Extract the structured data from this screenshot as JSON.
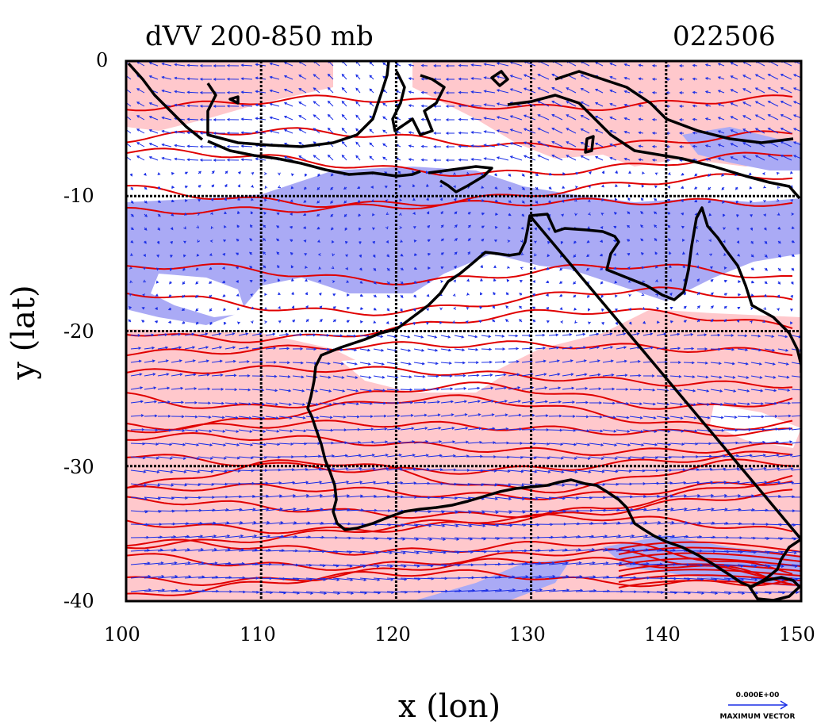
{
  "title": {
    "left": "dVV 200-850 mb",
    "right": "022506"
  },
  "axes": {
    "x_label": "x (lon)",
    "y_label": "y (lat)",
    "x_ticks": [
      "100",
      "110",
      "120",
      "130",
      "140",
      "150"
    ],
    "y_ticks": [
      "0",
      "-10",
      "-20",
      "-30",
      "-40"
    ]
  },
  "legend": {
    "value": "0.000E+00",
    "label": "MAXIMUM VECTOR"
  },
  "map": {
    "lon_range": [
      100,
      150
    ],
    "lat_range": [
      -40,
      0
    ],
    "fill_positive": "#ffc8cc",
    "fill_negative": "#aaaaf5",
    "contour_color": "#e00000",
    "vector_color": "#1a2ee6",
    "coast_color": "#000000",
    "grid_style": "dotted"
  }
}
